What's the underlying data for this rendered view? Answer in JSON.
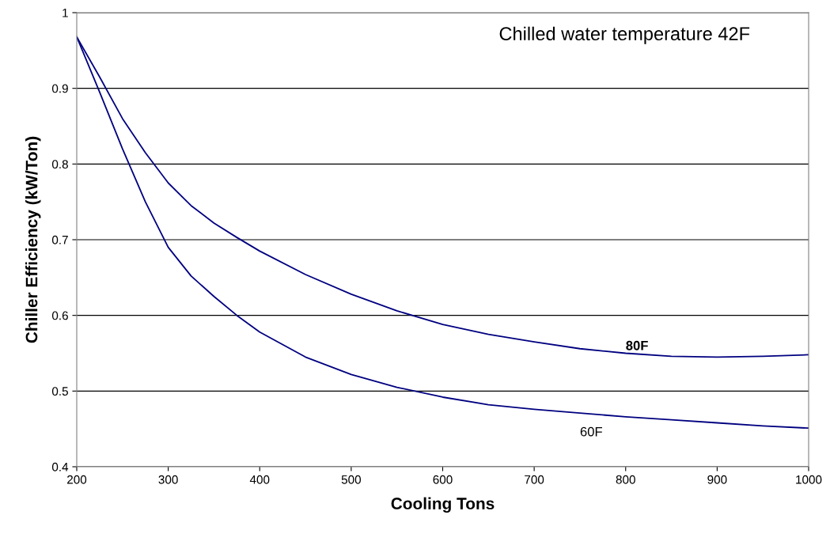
{
  "chart_data": {
    "type": "line",
    "xlabel": "Cooling Tons",
    "ylabel": "Chiller Efficiency (kW/Ton)",
    "annotations": [
      "Chilled water temperature 42F"
    ],
    "series": [
      {
        "name": "80F",
        "color": "#000080",
        "x": [
          200,
          225,
          250,
          275,
          300,
          325,
          350,
          375,
          400,
          450,
          500,
          550,
          600,
          650,
          700,
          750,
          800,
          850,
          900,
          950,
          1000
        ],
        "values": [
          0.968,
          0.915,
          0.86,
          0.815,
          0.775,
          0.745,
          0.722,
          0.703,
          0.685,
          0.654,
          0.628,
          0.606,
          0.588,
          0.575,
          0.565,
          0.556,
          0.55,
          0.546,
          0.545,
          0.546,
          0.548
        ]
      },
      {
        "name": "60F",
        "color": "#000080",
        "x": [
          200,
          225,
          250,
          275,
          300,
          325,
          350,
          375,
          400,
          450,
          500,
          550,
          600,
          650,
          700,
          750,
          800,
          850,
          900,
          950,
          1000
        ],
        "values": [
          0.968,
          0.895,
          0.82,
          0.75,
          0.69,
          0.652,
          0.625,
          0.6,
          0.578,
          0.545,
          0.522,
          0.505,
          0.492,
          0.482,
          0.476,
          0.471,
          0.466,
          0.462,
          0.458,
          0.454,
          0.451
        ]
      }
    ],
    "xlim": [
      200,
      1000
    ],
    "xticks": [
      200,
      300,
      400,
      500,
      600,
      700,
      800,
      900,
      1000
    ],
    "ylim": [
      0.4,
      1
    ],
    "yticks": [
      0.4,
      0.5,
      0.6,
      0.7,
      0.8,
      0.9,
      1
    ],
    "grid": "y",
    "marker": "none",
    "line_style": "solid",
    "legend": false
  }
}
